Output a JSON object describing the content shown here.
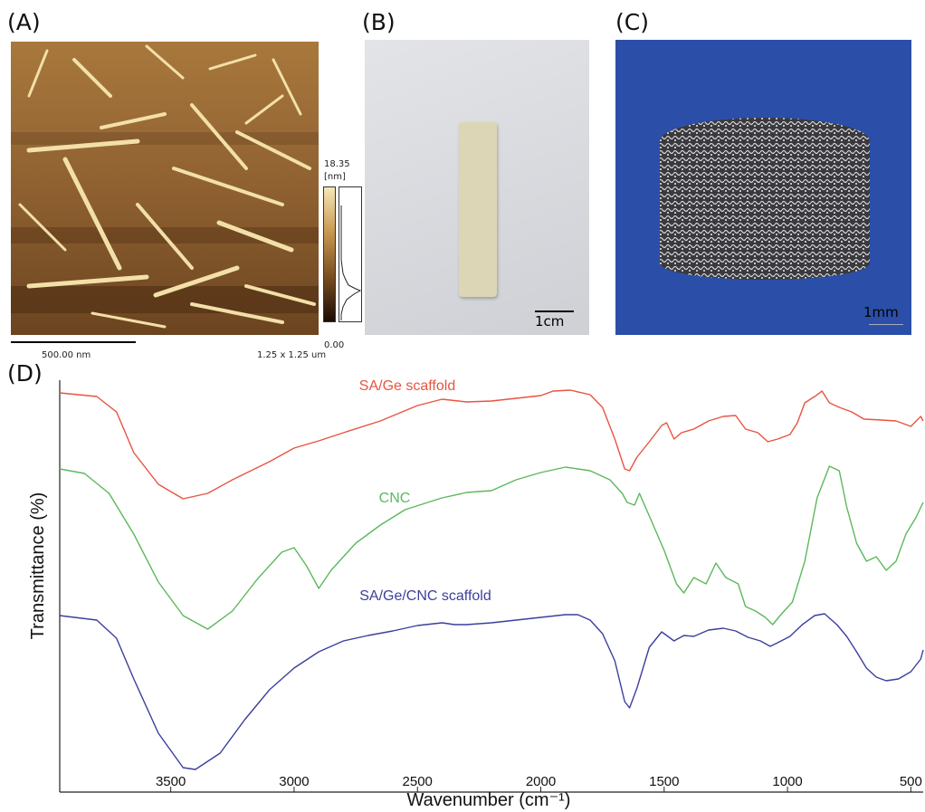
{
  "panels": {
    "a": {
      "letter": "(A)",
      "scale_label": "500.00 nm",
      "size_label": "1.25 x 1.25 um",
      "colorbar_max": "18.35",
      "colorbar_unit": "[nm]",
      "colorbar_min": "0.00"
    },
    "b": {
      "letter": "(B)",
      "scale_label": "1cm"
    },
    "c": {
      "letter": "(C)",
      "scale_label": "1mm"
    },
    "d": {
      "letter": "(D)"
    }
  },
  "chart_data": {
    "type": "line",
    "title": "",
    "xlabel": "Wavenumber (cm⁻¹)",
    "ylabel": "Transmittance (%)",
    "xlim": [
      3950,
      450
    ],
    "x_reversed": true,
    "x_ticks": [
      3500,
      3000,
      2500,
      2000,
      1500,
      1000,
      500
    ],
    "y_ticks_shown": false,
    "series": [
      {
        "name": "SA/Ge scaffold",
        "color": "#e8543f",
        "points": [
          [
            3950,
            434
          ],
          [
            3800,
            438
          ],
          [
            3720,
            455
          ],
          [
            3650,
            500
          ],
          [
            3550,
            535
          ],
          [
            3450,
            551
          ],
          [
            3350,
            545
          ],
          [
            3250,
            530
          ],
          [
            3100,
            510
          ],
          [
            3000,
            495
          ],
          [
            2900,
            487
          ],
          [
            2800,
            478
          ],
          [
            2650,
            465
          ],
          [
            2500,
            448
          ],
          [
            2400,
            441
          ],
          [
            2300,
            444
          ],
          [
            2200,
            443
          ],
          [
            2100,
            440
          ],
          [
            2000,
            437
          ],
          [
            1950,
            432
          ],
          [
            1880,
            431
          ],
          [
            1800,
            436
          ],
          [
            1750,
            450
          ],
          [
            1700,
            485
          ],
          [
            1660,
            518
          ],
          [
            1640,
            520
          ],
          [
            1610,
            505
          ],
          [
            1560,
            488
          ],
          [
            1510,
            470
          ],
          [
            1490,
            467
          ],
          [
            1460,
            485
          ],
          [
            1430,
            478
          ],
          [
            1380,
            474
          ],
          [
            1320,
            465
          ],
          [
            1260,
            460
          ],
          [
            1210,
            459
          ],
          [
            1170,
            474
          ],
          [
            1120,
            478
          ],
          [
            1080,
            488
          ],
          [
            1040,
            485
          ],
          [
            990,
            480
          ],
          [
            960,
            467
          ],
          [
            930,
            445
          ],
          [
            890,
            438
          ],
          [
            860,
            432
          ],
          [
            830,
            445
          ],
          [
            790,
            450
          ],
          [
            740,
            455
          ],
          [
            690,
            463
          ],
          [
            620,
            464
          ],
          [
            560,
            465
          ],
          [
            500,
            471
          ],
          [
            460,
            460
          ],
          [
            450,
            465
          ]
        ]
      },
      {
        "name": "CNC",
        "color": "#5cb85c",
        "points": [
          [
            3950,
            518
          ],
          [
            3850,
            523
          ],
          [
            3750,
            545
          ],
          [
            3650,
            590
          ],
          [
            3550,
            643
          ],
          [
            3450,
            680
          ],
          [
            3350,
            695
          ],
          [
            3250,
            675
          ],
          [
            3150,
            640
          ],
          [
            3050,
            610
          ],
          [
            3000,
            605
          ],
          [
            2950,
            625
          ],
          [
            2900,
            650
          ],
          [
            2850,
            630
          ],
          [
            2750,
            600
          ],
          [
            2650,
            580
          ],
          [
            2550,
            563
          ],
          [
            2400,
            550
          ],
          [
            2300,
            544
          ],
          [
            2200,
            542
          ],
          [
            2100,
            530
          ],
          [
            2000,
            522
          ],
          [
            1900,
            516
          ],
          [
            1800,
            520
          ],
          [
            1720,
            530
          ],
          [
            1670,
            545
          ],
          [
            1650,
            555
          ],
          [
            1620,
            558
          ],
          [
            1600,
            545
          ],
          [
            1560,
            570
          ],
          [
            1500,
            608
          ],
          [
            1450,
            645
          ],
          [
            1420,
            655
          ],
          [
            1380,
            638
          ],
          [
            1330,
            645
          ],
          [
            1290,
            622
          ],
          [
            1250,
            638
          ],
          [
            1200,
            645
          ],
          [
            1170,
            670
          ],
          [
            1130,
            675
          ],
          [
            1090,
            682
          ],
          [
            1060,
            690
          ],
          [
            1030,
            680
          ],
          [
            980,
            665
          ],
          [
            930,
            620
          ],
          [
            880,
            550
          ],
          [
            830,
            515
          ],
          [
            790,
            520
          ],
          [
            760,
            560
          ],
          [
            720,
            600
          ],
          [
            680,
            620
          ],
          [
            640,
            615
          ],
          [
            600,
            630
          ],
          [
            560,
            620
          ],
          [
            520,
            590
          ],
          [
            480,
            572
          ],
          [
            450,
            555
          ]
        ]
      },
      {
        "name": "SA/Ge/CNC scaffold",
        "color": "#3b3f9c",
        "points": [
          [
            3950,
            680
          ],
          [
            3800,
            685
          ],
          [
            3720,
            705
          ],
          [
            3650,
            750
          ],
          [
            3550,
            810
          ],
          [
            3450,
            848
          ],
          [
            3400,
            850
          ],
          [
            3300,
            832
          ],
          [
            3200,
            795
          ],
          [
            3100,
            762
          ],
          [
            3000,
            738
          ],
          [
            2900,
            720
          ],
          [
            2800,
            708
          ],
          [
            2700,
            702
          ],
          [
            2600,
            697
          ],
          [
            2500,
            691
          ],
          [
            2400,
            688
          ],
          [
            2350,
            690
          ],
          [
            2300,
            690
          ],
          [
            2200,
            688
          ],
          [
            2100,
            685
          ],
          [
            2000,
            682
          ],
          [
            1900,
            679
          ],
          [
            1850,
            679
          ],
          [
            1800,
            685
          ],
          [
            1750,
            700
          ],
          [
            1700,
            730
          ],
          [
            1660,
            775
          ],
          [
            1640,
            782
          ],
          [
            1610,
            760
          ],
          [
            1560,
            715
          ],
          [
            1510,
            698
          ],
          [
            1460,
            708
          ],
          [
            1420,
            702
          ],
          [
            1380,
            703
          ],
          [
            1320,
            696
          ],
          [
            1260,
            694
          ],
          [
            1210,
            697
          ],
          [
            1160,
            704
          ],
          [
            1110,
            708
          ],
          [
            1070,
            714
          ],
          [
            1040,
            710
          ],
          [
            990,
            703
          ],
          [
            940,
            690
          ],
          [
            890,
            680
          ],
          [
            850,
            678
          ],
          [
            800,
            690
          ],
          [
            760,
            703
          ],
          [
            720,
            720
          ],
          [
            680,
            738
          ],
          [
            640,
            748
          ],
          [
            600,
            752
          ],
          [
            550,
            750
          ],
          [
            500,
            742
          ],
          [
            460,
            728
          ],
          [
            450,
            718
          ]
        ]
      }
    ],
    "annotations": [
      "SA/Ge scaffold",
      "CNC",
      "SA/Ge/CNC scaffold"
    ]
  }
}
